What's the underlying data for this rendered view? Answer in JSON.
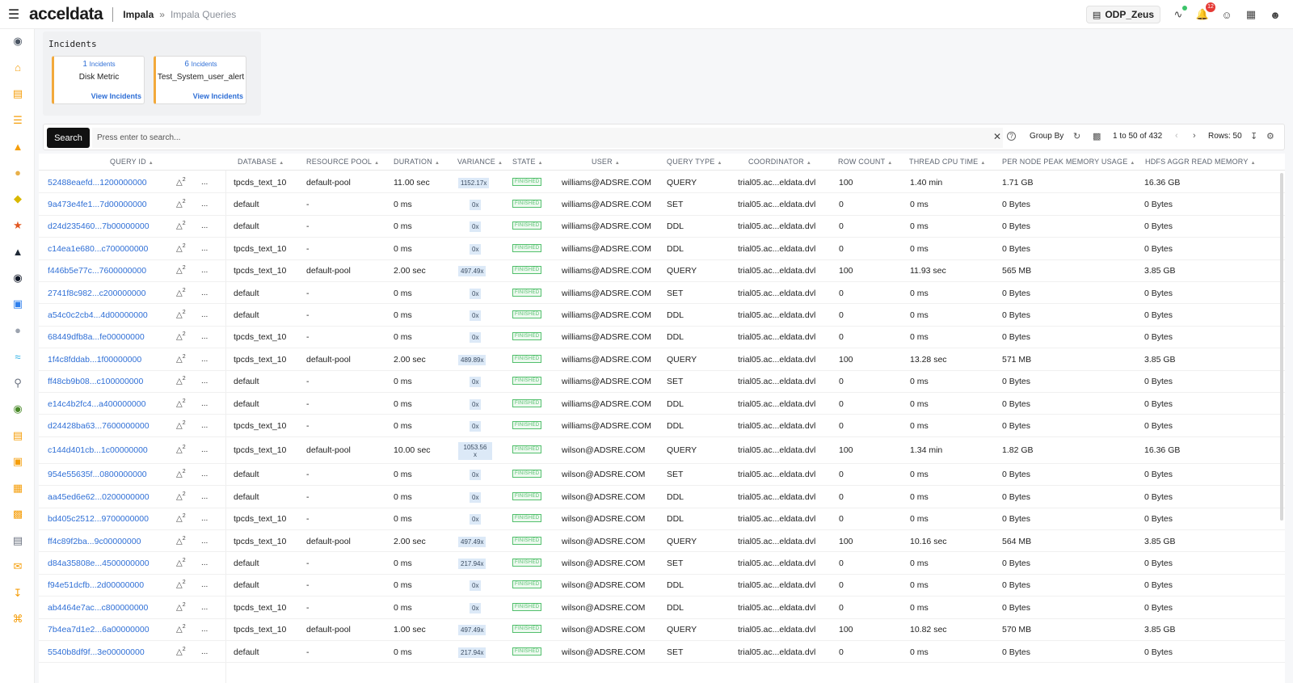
{
  "header": {
    "logo": "acceldata",
    "breadcrumb_root": "Impala",
    "breadcrumb_arrow": "»",
    "breadcrumb_current": "Impala Queries",
    "cluster_name": "ODP_Zeus",
    "notification_count": "12"
  },
  "incidents": {
    "title": "Incidents",
    "cards": [
      {
        "count": "1",
        "unit": "Incidents",
        "name": "Disk Metric",
        "link": "View Incidents"
      },
      {
        "count": "6",
        "unit": "Incidents",
        "name": "Test_System_user_alert",
        "link": "View Incidents"
      }
    ]
  },
  "toolbar": {
    "search_label": "Search",
    "search_placeholder": "Press enter to search...",
    "group_by": "Group By",
    "pagination": "1 to 50 of 432",
    "rows_label": "Rows: 50"
  },
  "columns": [
    "QUERY ID",
    "DATABASE",
    "RESOURCE POOL",
    "DURATION",
    "VARIANCE",
    "STATE",
    "USER",
    "QUERY TYPE",
    "COORDINATOR",
    "ROW COUNT",
    "THREAD CPU TIME",
    "PER NODE PEAK MEMORY USAGE",
    "HDFS AGGR READ MEMORY"
  ],
  "warn_count": "2",
  "rows": [
    {
      "id": "52488eaefd...1200000000",
      "db": "tpcds_text_10",
      "pool": "default-pool",
      "dur": "11.00 sec",
      "var": "1152.17x",
      "state": "FINISHED",
      "user": "williams@ADSRE.COM",
      "type": "QUERY",
      "coord": "trial05.ac...eldata.dvl",
      "rows": "100",
      "cpu": "1.40 min",
      "mem": "1.71 GB",
      "hdfs": "16.36 GB"
    },
    {
      "id": "9a473e4fe1...7d00000000",
      "db": "default",
      "pool": "-",
      "dur": "0 ms",
      "var": "0x",
      "state": "FINISHED",
      "user": "williams@ADSRE.COM",
      "type": "SET",
      "coord": "trial05.ac...eldata.dvl",
      "rows": "0",
      "cpu": "0 ms",
      "mem": "0 Bytes",
      "hdfs": "0 Bytes"
    },
    {
      "id": "d24d235460...7b00000000",
      "db": "default",
      "pool": "-",
      "dur": "0 ms",
      "var": "0x",
      "state": "FINISHED",
      "user": "williams@ADSRE.COM",
      "type": "DDL",
      "coord": "trial05.ac...eldata.dvl",
      "rows": "0",
      "cpu": "0 ms",
      "mem": "0 Bytes",
      "hdfs": "0 Bytes"
    },
    {
      "id": "c14ea1e680...c700000000",
      "db": "tpcds_text_10",
      "pool": "-",
      "dur": "0 ms",
      "var": "0x",
      "state": "FINISHED",
      "user": "williams@ADSRE.COM",
      "type": "DDL",
      "coord": "trial05.ac...eldata.dvl",
      "rows": "0",
      "cpu": "0 ms",
      "mem": "0 Bytes",
      "hdfs": "0 Bytes"
    },
    {
      "id": "f446b5e77c...7600000000",
      "db": "tpcds_text_10",
      "pool": "default-pool",
      "dur": "2.00 sec",
      "var": "497.49x",
      "state": "FINISHED",
      "user": "williams@ADSRE.COM",
      "type": "QUERY",
      "coord": "trial05.ac...eldata.dvl",
      "rows": "100",
      "cpu": "11.93 sec",
      "mem": "565 MB",
      "hdfs": "3.85 GB"
    },
    {
      "id": "2741f8c982...c200000000",
      "db": "default",
      "pool": "-",
      "dur": "0 ms",
      "var": "0x",
      "state": "FINISHED",
      "user": "williams@ADSRE.COM",
      "type": "SET",
      "coord": "trial05.ac...eldata.dvl",
      "rows": "0",
      "cpu": "0 ms",
      "mem": "0 Bytes",
      "hdfs": "0 Bytes"
    },
    {
      "id": "a54c0c2cb4...4d00000000",
      "db": "default",
      "pool": "-",
      "dur": "0 ms",
      "var": "0x",
      "state": "FINISHED",
      "user": "williams@ADSRE.COM",
      "type": "DDL",
      "coord": "trial05.ac...eldata.dvl",
      "rows": "0",
      "cpu": "0 ms",
      "mem": "0 Bytes",
      "hdfs": "0 Bytes"
    },
    {
      "id": "68449dfb8a...fe00000000",
      "db": "tpcds_text_10",
      "pool": "-",
      "dur": "0 ms",
      "var": "0x",
      "state": "FINISHED",
      "user": "williams@ADSRE.COM",
      "type": "DDL",
      "coord": "trial05.ac...eldata.dvl",
      "rows": "0",
      "cpu": "0 ms",
      "mem": "0 Bytes",
      "hdfs": "0 Bytes"
    },
    {
      "id": "1f4c8fddab...1f00000000",
      "db": "tpcds_text_10",
      "pool": "default-pool",
      "dur": "2.00 sec",
      "var": "489.89x",
      "state": "FINISHED",
      "user": "williams@ADSRE.COM",
      "type": "QUERY",
      "coord": "trial05.ac...eldata.dvl",
      "rows": "100",
      "cpu": "13.28 sec",
      "mem": "571 MB",
      "hdfs": "3.85 GB"
    },
    {
      "id": "ff48cb9b08...c100000000",
      "db": "default",
      "pool": "-",
      "dur": "0 ms",
      "var": "0x",
      "state": "FINISHED",
      "user": "williams@ADSRE.COM",
      "type": "SET",
      "coord": "trial05.ac...eldata.dvl",
      "rows": "0",
      "cpu": "0 ms",
      "mem": "0 Bytes",
      "hdfs": "0 Bytes"
    },
    {
      "id": "e14c4b2fc4...a400000000",
      "db": "default",
      "pool": "-",
      "dur": "0 ms",
      "var": "0x",
      "state": "FINISHED",
      "user": "williams@ADSRE.COM",
      "type": "DDL",
      "coord": "trial05.ac...eldata.dvl",
      "rows": "0",
      "cpu": "0 ms",
      "mem": "0 Bytes",
      "hdfs": "0 Bytes"
    },
    {
      "id": "d24428ba63...7600000000",
      "db": "tpcds_text_10",
      "pool": "-",
      "dur": "0 ms",
      "var": "0x",
      "state": "FINISHED",
      "user": "williams@ADSRE.COM",
      "type": "DDL",
      "coord": "trial05.ac...eldata.dvl",
      "rows": "0",
      "cpu": "0 ms",
      "mem": "0 Bytes",
      "hdfs": "0 Bytes"
    },
    {
      "id": "c144d401cb...1c00000000",
      "db": "tpcds_text_10",
      "pool": "default-pool",
      "dur": "10.00 sec",
      "var": "1053.56\nx",
      "state": "FINISHED",
      "user": "wilson@ADSRE.COM",
      "type": "QUERY",
      "coord": "trial05.ac...eldata.dvl",
      "rows": "100",
      "cpu": "1.34 min",
      "mem": "1.82 GB",
      "hdfs": "16.36 GB",
      "tall": true
    },
    {
      "id": "954e55635f...0800000000",
      "db": "default",
      "pool": "-",
      "dur": "0 ms",
      "var": "0x",
      "state": "FINISHED",
      "user": "wilson@ADSRE.COM",
      "type": "SET",
      "coord": "trial05.ac...eldata.dvl",
      "rows": "0",
      "cpu": "0 ms",
      "mem": "0 Bytes",
      "hdfs": "0 Bytes"
    },
    {
      "id": "aa45ed6e62...0200000000",
      "db": "default",
      "pool": "-",
      "dur": "0 ms",
      "var": "0x",
      "state": "FINISHED",
      "user": "wilson@ADSRE.COM",
      "type": "DDL",
      "coord": "trial05.ac...eldata.dvl",
      "rows": "0",
      "cpu": "0 ms",
      "mem": "0 Bytes",
      "hdfs": "0 Bytes"
    },
    {
      "id": "bd405c2512...9700000000",
      "db": "tpcds_text_10",
      "pool": "-",
      "dur": "0 ms",
      "var": "0x",
      "state": "FINISHED",
      "user": "wilson@ADSRE.COM",
      "type": "DDL",
      "coord": "trial05.ac...eldata.dvl",
      "rows": "0",
      "cpu": "0 ms",
      "mem": "0 Bytes",
      "hdfs": "0 Bytes"
    },
    {
      "id": "ff4c89f2ba...9c00000000",
      "db": "tpcds_text_10",
      "pool": "default-pool",
      "dur": "2.00 sec",
      "var": "497.49x",
      "state": "FINISHED",
      "user": "wilson@ADSRE.COM",
      "type": "QUERY",
      "coord": "trial05.ac...eldata.dvl",
      "rows": "100",
      "cpu": "10.16 sec",
      "mem": "564 MB",
      "hdfs": "3.85 GB"
    },
    {
      "id": "d84a35808e...4500000000",
      "db": "default",
      "pool": "-",
      "dur": "0 ms",
      "var": "217.94x",
      "state": "FINISHED",
      "user": "wilson@ADSRE.COM",
      "type": "SET",
      "coord": "trial05.ac...eldata.dvl",
      "rows": "0",
      "cpu": "0 ms",
      "mem": "0 Bytes",
      "hdfs": "0 Bytes"
    },
    {
      "id": "f94e51dcfb...2d00000000",
      "db": "default",
      "pool": "-",
      "dur": "0 ms",
      "var": "0x",
      "state": "FINISHED",
      "user": "wilson@ADSRE.COM",
      "type": "DDL",
      "coord": "trial05.ac...eldata.dvl",
      "rows": "0",
      "cpu": "0 ms",
      "mem": "0 Bytes",
      "hdfs": "0 Bytes"
    },
    {
      "id": "ab4464e7ac...c800000000",
      "db": "tpcds_text_10",
      "pool": "-",
      "dur": "0 ms",
      "var": "0x",
      "state": "FINISHED",
      "user": "wilson@ADSRE.COM",
      "type": "DDL",
      "coord": "trial05.ac...eldata.dvl",
      "rows": "0",
      "cpu": "0 ms",
      "mem": "0 Bytes",
      "hdfs": "0 Bytes"
    },
    {
      "id": "7b4ea7d1e2...6a00000000",
      "db": "tpcds_text_10",
      "pool": "default-pool",
      "dur": "1.00 sec",
      "var": "497.49x",
      "state": "FINISHED",
      "user": "wilson@ADSRE.COM",
      "type": "QUERY",
      "coord": "trial05.ac...eldata.dvl",
      "rows": "100",
      "cpu": "10.82 sec",
      "mem": "570 MB",
      "hdfs": "3.85 GB"
    },
    {
      "id": "5540b8df9f...3e00000000",
      "db": "default",
      "pool": "-",
      "dur": "0 ms",
      "var": "217.94x",
      "state": "FINISHED",
      "user": "wilson@ADSRE.COM",
      "type": "SET",
      "coord": "trial05.ac...eldata.dvl",
      "rows": "0",
      "cpu": "0 ms",
      "mem": "0 Bytes",
      "hdfs": "0 Bytes"
    }
  ],
  "sidebar_icons": [
    "list-icon",
    "home-icon",
    "cube-icon",
    "layers-icon",
    "hierarchy-icon",
    "elephant-icon",
    "bee-icon",
    "spark-icon",
    "dolphin-icon",
    "nodes-icon",
    "zookeeper-icon",
    "drop-icon",
    "flow-icon",
    "fork-icon",
    "globe-icon",
    "document-icon",
    "database-icon",
    "grid-icon",
    "presentation-icon",
    "report-icon",
    "bell-icon",
    "download-icon",
    "command-icon"
  ],
  "colors": {
    "link": "#2f6fd6",
    "finished": "#53c06d",
    "variance_bg": "#dce9f7",
    "alert_border": "#f2a93b"
  }
}
